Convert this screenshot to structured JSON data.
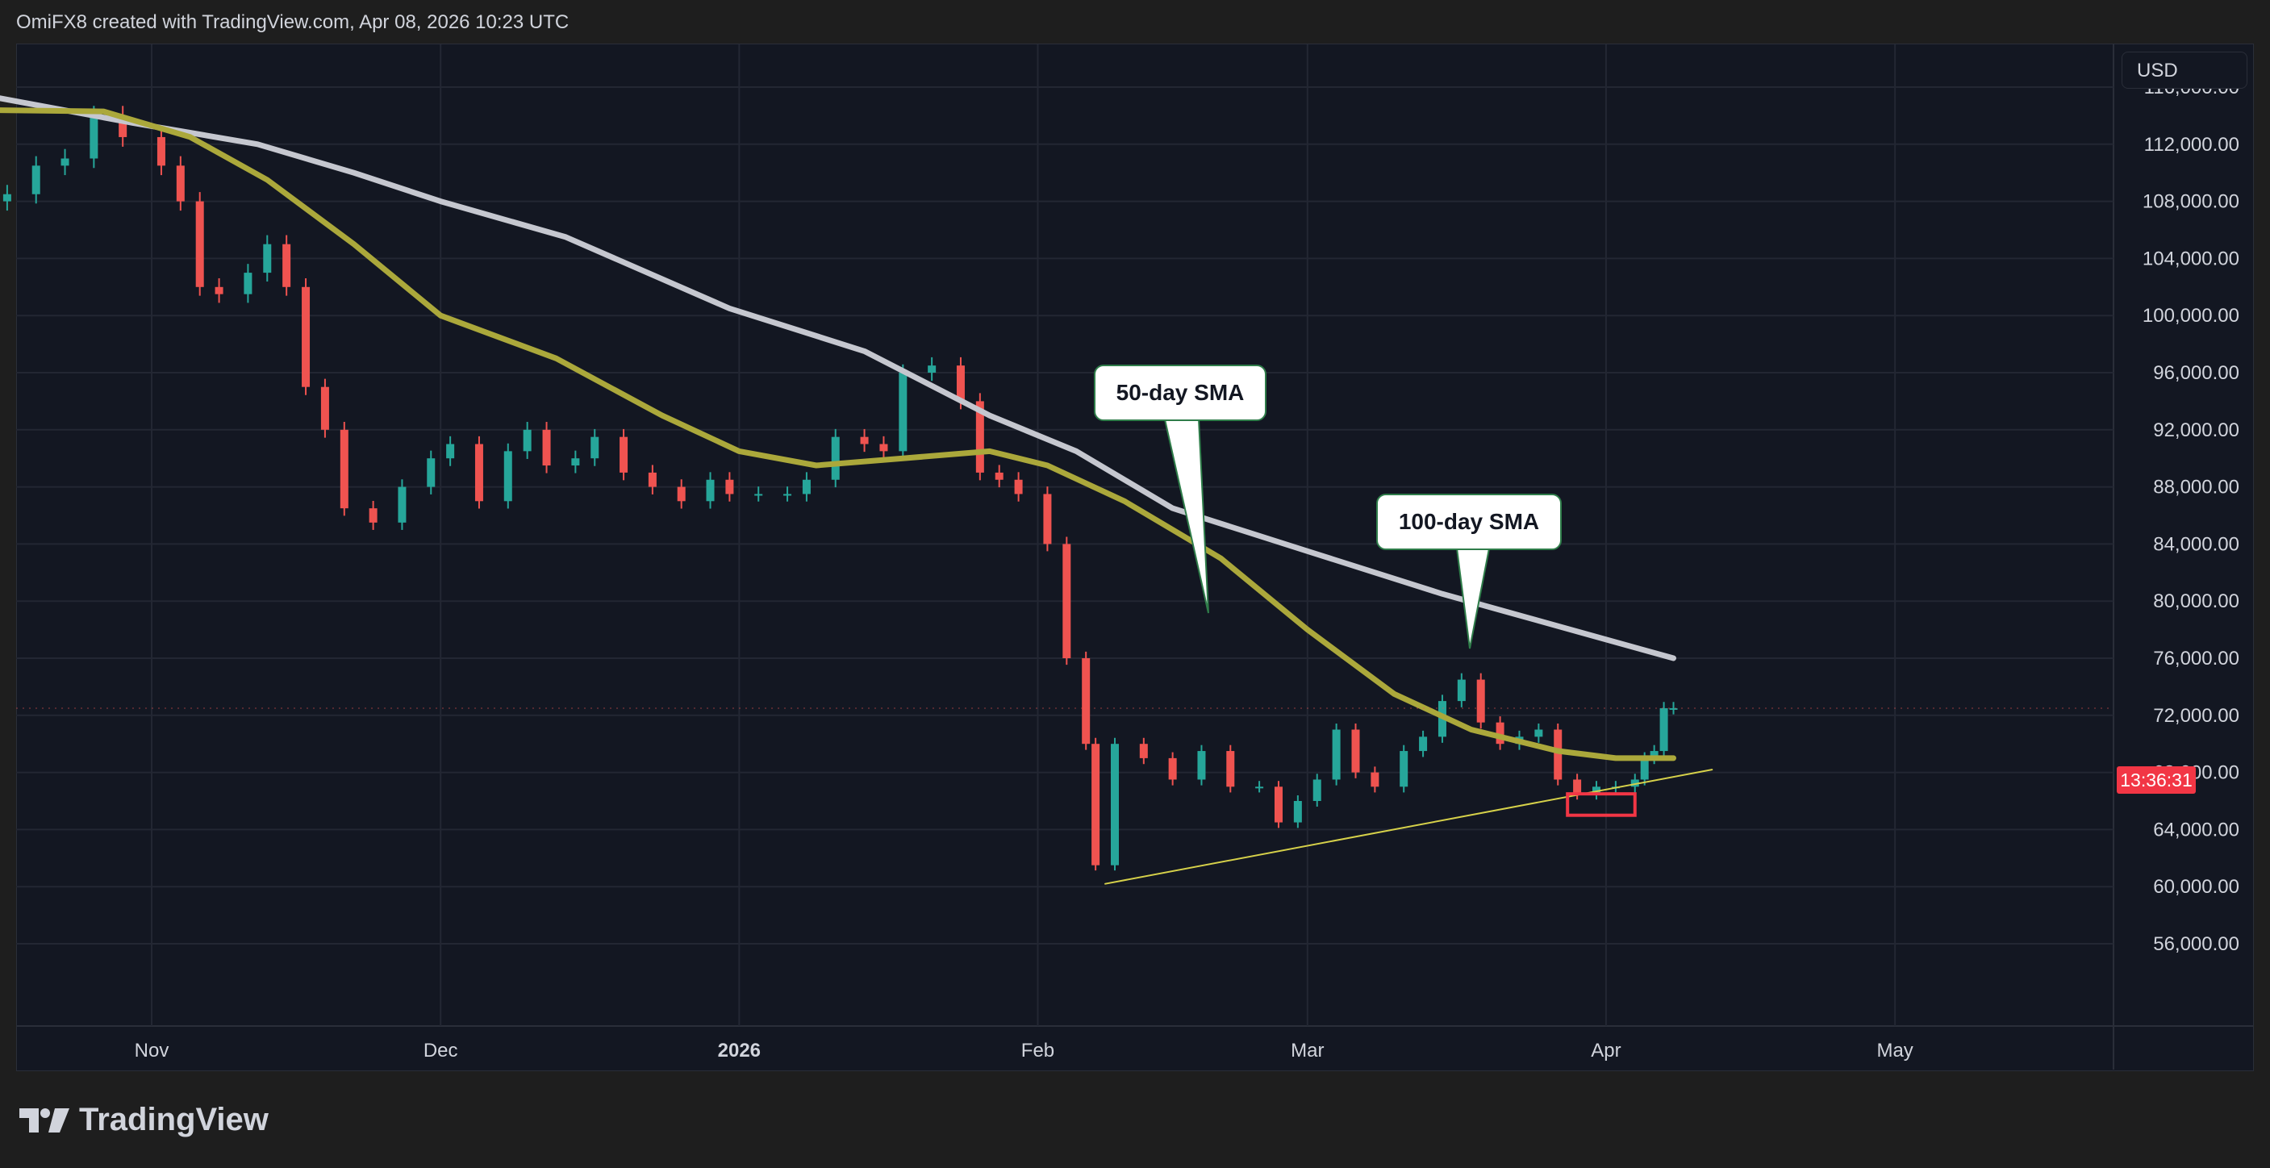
{
  "header": {
    "text": "OmiFX8 created with TradingView.com, Apr 08, 2026 10:23 UTC"
  },
  "currency": "USD",
  "countdown": "13:36:31",
  "brand": {
    "name": "TradingView"
  },
  "annotations": {
    "sma50_label": "50-day SMA",
    "sma100_label": "100-day SMA"
  },
  "colors": {
    "up": "#26a69a",
    "down": "#ef5350",
    "sma50": "#aba83b",
    "sma100": "#c5c7cf",
    "trendline": "#d6d14a",
    "grid": "#232733",
    "bg": "#131722"
  },
  "chart_data": {
    "type": "candlestick",
    "title": "",
    "x_axis": {
      "ticks": [
        {
          "label": "Nov",
          "date": "2025-11-01"
        },
        {
          "label": "Dec",
          "date": "2025-12-01"
        },
        {
          "label": "2026",
          "date": "2026-01-01",
          "bold": true
        },
        {
          "label": "Feb",
          "date": "2026-02-01"
        },
        {
          "label": "Mar",
          "date": "2026-03-01"
        },
        {
          "label": "Apr",
          "date": "2026-04-01"
        },
        {
          "label": "May",
          "date": "2026-05-01"
        }
      ]
    },
    "y_axis": {
      "currency": "USD",
      "range": [
        54000,
        120000
      ],
      "ticks": [
        56000,
        60000,
        64000,
        68000,
        72000,
        76000,
        80000,
        84000,
        88000,
        92000,
        96000,
        100000,
        104000,
        108000,
        112000,
        116000
      ],
      "tick_labels": [
        "56,000.00",
        "60,000.00",
        "64,000.00",
        "68,000.00",
        "72,000.00",
        "76,000.00",
        "80,000.00",
        "84,000.00",
        "88,000.00",
        "92,000.00",
        "96,000.00",
        "100,000.00",
        "104,000.00",
        "108,000.00",
        "112,000.00",
        "116,000.00"
      ]
    },
    "close_series": [
      {
        "date": "2025-10-14",
        "close": 108000
      },
      {
        "date": "2025-10-17",
        "close": 108500
      },
      {
        "date": "2025-10-20",
        "close": 110500
      },
      {
        "date": "2025-10-23",
        "close": 111000
      },
      {
        "date": "2025-10-26",
        "close": 114000
      },
      {
        "date": "2025-10-29",
        "close": 112500
      },
      {
        "date": "2025-11-02",
        "close": 110500
      },
      {
        "date": "2025-11-04",
        "close": 108000
      },
      {
        "date": "2025-11-06",
        "close": 102000
      },
      {
        "date": "2025-11-08",
        "close": 101500
      },
      {
        "date": "2025-11-11",
        "close": 103000
      },
      {
        "date": "2025-11-13",
        "close": 105000
      },
      {
        "date": "2025-11-15",
        "close": 102000
      },
      {
        "date": "2025-11-17",
        "close": 95000
      },
      {
        "date": "2025-11-19",
        "close": 92000
      },
      {
        "date": "2025-11-21",
        "close": 86500
      },
      {
        "date": "2025-11-24",
        "close": 85500
      },
      {
        "date": "2025-11-27",
        "close": 88000
      },
      {
        "date": "2025-11-30",
        "close": 90000
      },
      {
        "date": "2025-12-02",
        "close": 91000
      },
      {
        "date": "2025-12-05",
        "close": 87000
      },
      {
        "date": "2025-12-08",
        "close": 90500
      },
      {
        "date": "2025-12-10",
        "close": 92000
      },
      {
        "date": "2025-12-12",
        "close": 89500
      },
      {
        "date": "2025-12-15",
        "close": 90000
      },
      {
        "date": "2025-12-17",
        "close": 91500
      },
      {
        "date": "2025-12-20",
        "close": 89000
      },
      {
        "date": "2025-12-23",
        "close": 88000
      },
      {
        "date": "2025-12-26",
        "close": 87000
      },
      {
        "date": "2025-12-29",
        "close": 88500
      },
      {
        "date": "2025-12-31",
        "close": 87500
      },
      {
        "date": "2026-01-03",
        "close": 87500
      },
      {
        "date": "2026-01-06",
        "close": 87500
      },
      {
        "date": "2026-01-08",
        "close": 88500
      },
      {
        "date": "2026-01-11",
        "close": 91500
      },
      {
        "date": "2026-01-14",
        "close": 91000
      },
      {
        "date": "2026-01-16",
        "close": 90500
      },
      {
        "date": "2026-01-18",
        "close": 96000
      },
      {
        "date": "2026-01-21",
        "close": 96500
      },
      {
        "date": "2026-01-24",
        "close": 94000
      },
      {
        "date": "2026-01-26",
        "close": 89000
      },
      {
        "date": "2026-01-28",
        "close": 88500
      },
      {
        "date": "2026-01-30",
        "close": 87500
      },
      {
        "date": "2026-02-02",
        "close": 84000
      },
      {
        "date": "2026-02-04",
        "close": 76000
      },
      {
        "date": "2026-02-06",
        "close": 70000
      },
      {
        "date": "2026-02-07",
        "close": 61500
      },
      {
        "date": "2026-02-09",
        "close": 70000
      },
      {
        "date": "2026-02-12",
        "close": 69000
      },
      {
        "date": "2026-02-15",
        "close": 67500
      },
      {
        "date": "2026-02-18",
        "close": 69500
      },
      {
        "date": "2026-02-21",
        "close": 67000
      },
      {
        "date": "2026-02-24",
        "close": 67000
      },
      {
        "date": "2026-02-26",
        "close": 64500
      },
      {
        "date": "2026-02-28",
        "close": 66000
      },
      {
        "date": "2026-03-02",
        "close": 67500
      },
      {
        "date": "2026-03-04",
        "close": 71000
      },
      {
        "date": "2026-03-06",
        "close": 68000
      },
      {
        "date": "2026-03-08",
        "close": 67000
      },
      {
        "date": "2026-03-11",
        "close": 69500
      },
      {
        "date": "2026-03-13",
        "close": 70500
      },
      {
        "date": "2026-03-15",
        "close": 73000
      },
      {
        "date": "2026-03-17",
        "close": 74500
      },
      {
        "date": "2026-03-19",
        "close": 71500
      },
      {
        "date": "2026-03-21",
        "close": 70000
      },
      {
        "date": "2026-03-23",
        "close": 70500
      },
      {
        "date": "2026-03-25",
        "close": 71000
      },
      {
        "date": "2026-03-27",
        "close": 67500
      },
      {
        "date": "2026-03-29",
        "close": 66500
      },
      {
        "date": "2026-03-31",
        "close": 67000
      },
      {
        "date": "2026-04-02",
        "close": 67000
      },
      {
        "date": "2026-04-04",
        "close": 67500
      },
      {
        "date": "2026-04-05",
        "close": 69000
      },
      {
        "date": "2026-04-06",
        "close": 69500
      },
      {
        "date": "2026-04-07",
        "close": 72500
      },
      {
        "date": "2026-04-08",
        "close": 72500
      }
    ],
    "sma50": [
      {
        "date": "2025-10-14",
        "value": 114400
      },
      {
        "date": "2025-10-27",
        "value": 114300
      },
      {
        "date": "2025-11-05",
        "value": 112500
      },
      {
        "date": "2025-11-13",
        "value": 109500
      },
      {
        "date": "2025-11-22",
        "value": 105000
      },
      {
        "date": "2025-12-01",
        "value": 100000
      },
      {
        "date": "2025-12-13",
        "value": 97000
      },
      {
        "date": "2025-12-24",
        "value": 93000
      },
      {
        "date": "2026-01-01",
        "value": 90500
      },
      {
        "date": "2026-01-09",
        "value": 89500
      },
      {
        "date": "2026-01-18",
        "value": 90000
      },
      {
        "date": "2026-01-27",
        "value": 90500
      },
      {
        "date": "2026-02-02",
        "value": 89500
      },
      {
        "date": "2026-02-10",
        "value": 87000
      },
      {
        "date": "2026-02-20",
        "value": 83000
      },
      {
        "date": "2026-03-01",
        "value": 78000
      },
      {
        "date": "2026-03-10",
        "value": 73500
      },
      {
        "date": "2026-03-18",
        "value": 71000
      },
      {
        "date": "2026-03-27",
        "value": 69500
      },
      {
        "date": "2026-04-02",
        "value": 69000
      },
      {
        "date": "2026-04-08",
        "value": 69000
      }
    ],
    "sma100": [
      {
        "date": "2025-10-14",
        "value": 115500
      },
      {
        "date": "2025-10-30",
        "value": 113500
      },
      {
        "date": "2025-11-12",
        "value": 112000
      },
      {
        "date": "2025-11-22",
        "value": 110000
      },
      {
        "date": "2025-12-01",
        "value": 108000
      },
      {
        "date": "2025-12-14",
        "value": 105500
      },
      {
        "date": "2025-12-31",
        "value": 100500
      },
      {
        "date": "2026-01-14",
        "value": 97500
      },
      {
        "date": "2026-01-27",
        "value": 93000
      },
      {
        "date": "2026-02-05",
        "value": 90500
      },
      {
        "date": "2026-02-15",
        "value": 86500
      },
      {
        "date": "2026-03-01",
        "value": 83500
      },
      {
        "date": "2026-03-15",
        "value": 80500
      },
      {
        "date": "2026-03-31",
        "value": 77500
      },
      {
        "date": "2026-04-08",
        "value": 76000
      }
    ],
    "trendline": [
      {
        "date": "2026-02-08",
        "value": 60200
      },
      {
        "date": "2026-04-12",
        "value": 68200
      }
    ],
    "highlight_box": {
      "date_start": "2026-03-28",
      "date_end": "2026-04-04",
      "low": 65000,
      "high": 66500
    },
    "legend": "none",
    "grid": true
  }
}
